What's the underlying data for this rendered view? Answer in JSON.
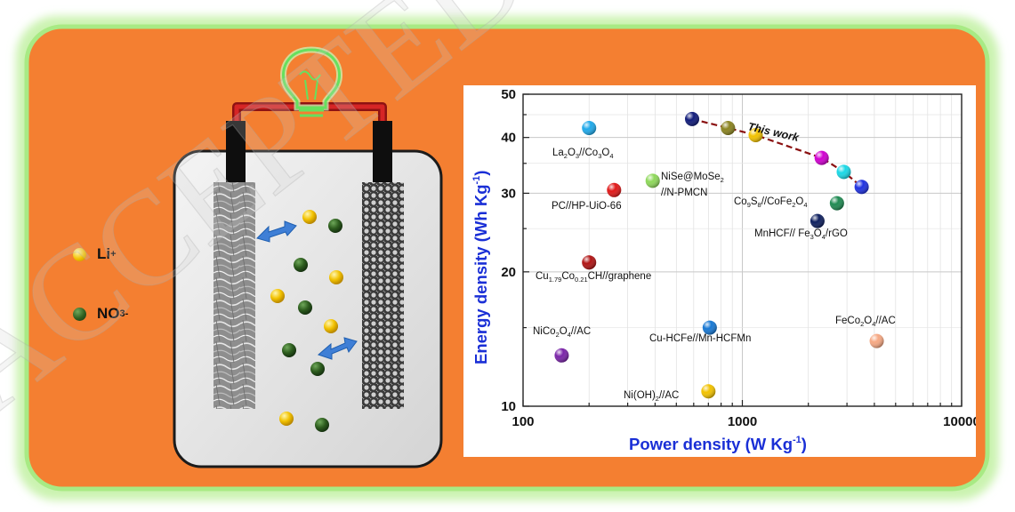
{
  "legend": {
    "li_label": "Li",
    "li_sup": "+",
    "li_color": "#f2c200",
    "no3_label": "NO",
    "no3_sub": "3",
    "no3_sup": "-",
    "no3_color": "#2e5e1f"
  },
  "watermark": "ACCEPTED",
  "colors": {
    "background_orange": "#f47f31",
    "frame_green": "#b9ee9c",
    "wire_red": "#b01a1a",
    "arrow_blue": "#3f7fd6",
    "bulb_green": "#8ef08a"
  },
  "chart_data": {
    "type": "scatter",
    "x_scale": "log",
    "y_scale": "log",
    "xlim": [
      100,
      10000
    ],
    "ylim": [
      10,
      50
    ],
    "xlabel": "Power density (W Kg",
    "xlabel_sup": "-1",
    "xlabel_end": ")",
    "ylabel": "Energy density (Wh Kg",
    "ylabel_sup": "-1",
    "ylabel_end": ")",
    "xticks": [
      100,
      1000,
      10000
    ],
    "xtick_labels": [
      "100",
      "1000",
      "10000"
    ],
    "yticks": [
      10,
      20,
      30,
      40,
      50
    ],
    "ytick_labels": [
      "10",
      "20",
      "30",
      "40",
      "50"
    ],
    "grid": true,
    "this_work_label": "This work",
    "this_work": [
      {
        "x": 590,
        "y": 44,
        "color": "#101b7a"
      },
      {
        "x": 860,
        "y": 42,
        "color": "#8b8420"
      },
      {
        "x": 1150,
        "y": 40.5,
        "color": "#f2c200"
      },
      {
        "x": 2300,
        "y": 36,
        "color": "#d000d0"
      },
      {
        "x": 2900,
        "y": 33.5,
        "color": "#1ad8e6"
      },
      {
        "x": 3500,
        "y": 31,
        "color": "#1f31e0"
      }
    ],
    "points": [
      {
        "x": 200,
        "y": 42,
        "color": "#1fa9ea",
        "label": "La2O3//Co3O4"
      },
      {
        "x": 260,
        "y": 30.5,
        "color": "#e01818",
        "label": "PC//HP-UiO-66"
      },
      {
        "x": 390,
        "y": 32,
        "color": "#8ed85a",
        "label": "NiSe@MoSe2//N-PMCN"
      },
      {
        "x": 200,
        "y": 21,
        "color": "#b01414",
        "label": "Cu1.79Co0.21CH//graphene"
      },
      {
        "x": 150,
        "y": 13,
        "color": "#7a24a8",
        "label": "NiCo2O4//AC"
      },
      {
        "x": 710,
        "y": 15,
        "color": "#1778d4",
        "label": "Cu-HCFe//Mn-HCFMn"
      },
      {
        "x": 700,
        "y": 10.8,
        "color": "#f2c200",
        "label": "Ni(OH)2//AC"
      },
      {
        "x": 2700,
        "y": 28.5,
        "color": "#1f8a52",
        "label": "Co9S8//CoFe2O4"
      },
      {
        "x": 2200,
        "y": 26,
        "color": "#0e1f5e",
        "label": "MnHCF// Fe3O4/rGO"
      },
      {
        "x": 4100,
        "y": 14,
        "color": "#f6a883",
        "label": "FeCo2O4//AC"
      }
    ],
    "labels": {
      "la2o3": {
        "a": "La",
        "a_sub": "2",
        "b": "O",
        "b_sub": "3",
        "c": "//Co",
        "c_sub": "3",
        "d": "O",
        "d_sub": "4"
      },
      "pc": "PC//HP-UiO-66",
      "nise_l1": "NiSe@MoSe",
      "nise_l1_sub": "2",
      "nise_l2": "//N-PMCN",
      "cu": {
        "a": "Cu",
        "a_sub": "1.79",
        "b": "Co",
        "b_sub": "0.21",
        "c": "CH//graphene"
      },
      "nico": {
        "a": "NiCo",
        "a_sub": "2",
        "b": "O",
        "b_sub": "4",
        "c": "//AC"
      },
      "cuhcfe": "Cu-HCFe//Mn-HCFMn",
      "nioh": {
        "a": "Ni(OH)",
        "a_sub": "2",
        "b": "//AC"
      },
      "co9s8": {
        "a": "Co",
        "a_sub": "9",
        "b": "S",
        "b_sub": "8",
        "c": "//CoFe",
        "c_sub": "2",
        "d": "O",
        "d_sub": "4"
      },
      "mnhcf": {
        "a": "MnHCF// Fe",
        "a_sub": "3",
        "b": "O",
        "b_sub": "4",
        "c": "/rGO"
      },
      "feco": {
        "a": "FeCo",
        "a_sub": "2",
        "b": "O",
        "b_sub": "4",
        "c": "//AC"
      }
    }
  }
}
